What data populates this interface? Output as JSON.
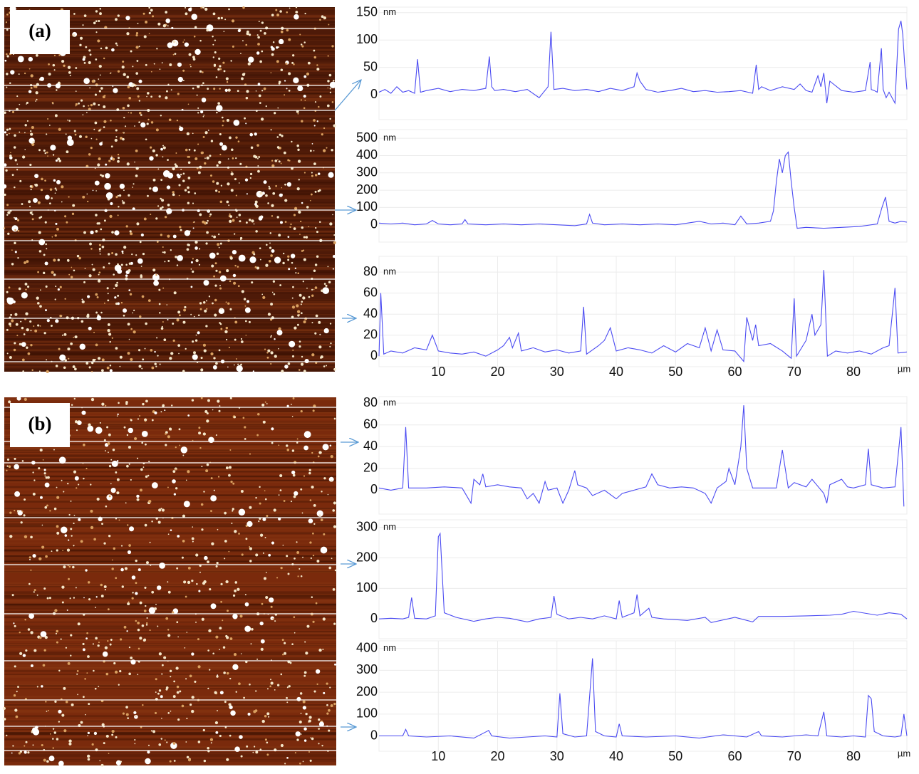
{
  "panel_labels": [
    "(a)",
    "(b)"
  ],
  "chart_data": [
    {
      "type": "line",
      "ylabel": "nm",
      "color": "#4b4bf2",
      "xlim": [
        0,
        89
      ],
      "ylim": [
        -45,
        160
      ],
      "yticks": [
        0,
        50,
        100,
        150
      ],
      "x": [
        0,
        1,
        2,
        3,
        4,
        5,
        6,
        6.5,
        7,
        8,
        10,
        12,
        14,
        16,
        18,
        18.6,
        19,
        19.5,
        21,
        23,
        25,
        27,
        28.5,
        29,
        29.5,
        31,
        33,
        35,
        37,
        39,
        41,
        43,
        43.5,
        44,
        45,
        47,
        49,
        51,
        53,
        55,
        57,
        59,
        61,
        63,
        63.6,
        64,
        64.5,
        66,
        68,
        70,
        71,
        72,
        73,
        74,
        74.5,
        75,
        75.5,
        76,
        78,
        80,
        82,
        82.8,
        83,
        83.5,
        84,
        84.7,
        85,
        85.5,
        86,
        87,
        87.6,
        88,
        88.3,
        88.6,
        89
      ],
      "values": [
        5,
        10,
        3,
        15,
        5,
        8,
        3,
        65,
        5,
        8,
        12,
        6,
        10,
        8,
        12,
        70,
        15,
        8,
        10,
        6,
        10,
        -5,
        15,
        115,
        10,
        12,
        8,
        10,
        6,
        12,
        8,
        15,
        40,
        25,
        10,
        5,
        8,
        12,
        6,
        8,
        5,
        6,
        8,
        3,
        55,
        10,
        15,
        8,
        15,
        10,
        20,
        8,
        5,
        35,
        15,
        40,
        -15,
        25,
        8,
        5,
        8,
        60,
        10,
        8,
        5,
        85,
        10,
        -5,
        5,
        -15,
        120,
        135,
        110,
        60,
        10
      ]
    },
    {
      "type": "line",
      "ylabel": "nm",
      "color": "#4b4bf2",
      "xlim": [
        0,
        89
      ],
      "ylim": [
        -100,
        550
      ],
      "yticks": [
        0,
        100,
        200,
        300,
        400,
        500
      ],
      "x": [
        0,
        2,
        4,
        6,
        8,
        9,
        10,
        12,
        14,
        14.5,
        15,
        18,
        21,
        24,
        27,
        30,
        33,
        35,
        35.5,
        36,
        38,
        41,
        44,
        47,
        50,
        52,
        54,
        56,
        58,
        60,
        61,
        62,
        64,
        66,
        66.5,
        67,
        67.5,
        68,
        68.5,
        69,
        69.5,
        70,
        70.5,
        72,
        75,
        78,
        81,
        84,
        84.8,
        85.4,
        86,
        87,
        88,
        89
      ],
      "values": [
        10,
        5,
        10,
        0,
        5,
        25,
        5,
        0,
        5,
        30,
        5,
        0,
        5,
        0,
        5,
        0,
        -5,
        5,
        60,
        10,
        0,
        5,
        0,
        5,
        0,
        10,
        20,
        5,
        10,
        0,
        50,
        5,
        10,
        20,
        80,
        250,
        380,
        300,
        400,
        420,
        250,
        100,
        -20,
        -15,
        -20,
        -15,
        -10,
        5,
        100,
        160,
        20,
        10,
        20,
        15
      ]
    },
    {
      "type": "line",
      "ylabel": "nm",
      "xlabel": "µm",
      "color": "#4b4bf2",
      "xlim": [
        0,
        89
      ],
      "ylim": [
        -10,
        95
      ],
      "yticks": [
        0,
        20,
        40,
        60,
        80
      ],
      "xticks": [
        10,
        20,
        30,
        40,
        50,
        60,
        70,
        80
      ],
      "x": [
        0,
        0.3,
        0.8,
        2,
        4,
        6,
        8,
        9,
        10,
        12,
        14,
        16,
        18,
        20,
        21,
        22,
        22.5,
        23.5,
        24,
        26,
        28,
        30,
        32,
        34,
        34.5,
        35,
        37,
        38,
        39,
        40,
        42,
        44,
        46,
        48,
        50,
        52,
        54,
        55,
        56,
        57,
        58,
        60,
        61.5,
        62,
        63,
        63.5,
        64,
        66,
        68,
        69.5,
        70,
        70.4,
        72,
        73,
        73.5,
        74.5,
        75,
        75.6,
        77,
        79,
        81,
        83,
        85,
        86,
        87,
        87.5,
        89
      ],
      "values": [
        0,
        60,
        2,
        5,
        3,
        8,
        6,
        20,
        5,
        3,
        2,
        4,
        0,
        6,
        10,
        18,
        8,
        22,
        5,
        8,
        4,
        6,
        3,
        5,
        47,
        2,
        10,
        15,
        27,
        5,
        8,
        6,
        3,
        10,
        4,
        12,
        8,
        27,
        5,
        25,
        6,
        5,
        -5,
        37,
        15,
        30,
        10,
        12,
        5,
        -2,
        55,
        0,
        15,
        40,
        20,
        30,
        82,
        0,
        5,
        3,
        5,
        2,
        8,
        10,
        65,
        3,
        4
      ]
    },
    {
      "type": "line",
      "ylabel": "nm",
      "color": "#4b4bf2",
      "xlim": [
        0,
        89
      ],
      "ylim": [
        -22,
        86
      ],
      "yticks": [
        0,
        20,
        40,
        60,
        80
      ],
      "x": [
        0,
        2,
        4,
        4.5,
        5,
        8,
        11,
        14,
        15.5,
        16,
        17,
        17.5,
        18,
        20,
        22,
        24,
        25,
        26,
        27,
        28,
        28.5,
        30,
        31,
        32,
        33,
        33.5,
        35,
        36,
        38,
        40,
        41,
        43,
        45,
        46,
        47,
        49,
        51,
        53,
        55,
        56,
        57,
        58.5,
        59,
        60,
        61,
        61.5,
        62,
        63,
        65,
        67,
        68,
        69,
        70,
        72,
        73,
        75,
        75.5,
        76,
        78,
        79,
        80,
        82,
        82.5,
        83,
        85,
        87,
        88,
        88.5
      ],
      "values": [
        2,
        0,
        2,
        58,
        2,
        2,
        3,
        2,
        -12,
        10,
        5,
        15,
        3,
        5,
        3,
        2,
        -8,
        -3,
        -12,
        8,
        0,
        2,
        -12,
        0,
        18,
        5,
        2,
        -5,
        0,
        -8,
        -3,
        0,
        3,
        15,
        5,
        2,
        3,
        2,
        -3,
        -12,
        2,
        8,
        20,
        5,
        40,
        78,
        20,
        2,
        2,
        2,
        37,
        2,
        7,
        3,
        10,
        -3,
        -12,
        5,
        10,
        3,
        2,
        5,
        38,
        5,
        2,
        3,
        58,
        -15
      ]
    },
    {
      "type": "line",
      "ylabel": "nm",
      "color": "#4b4bf2",
      "xlim": [
        0,
        89
      ],
      "ylim": [
        -65,
        325
      ],
      "yticks": [
        0,
        100,
        200,
        300
      ],
      "x": [
        0,
        2,
        4,
        5,
        5.5,
        6,
        8,
        9.5,
        10,
        10.3,
        11,
        13,
        16,
        18,
        20,
        22,
        25,
        27,
        29,
        29.5,
        30,
        32,
        34,
        36,
        38,
        40,
        40.5,
        41,
        43,
        43.5,
        44,
        45.5,
        46,
        48,
        52,
        55,
        56,
        60,
        63,
        64,
        68,
        72,
        76,
        78,
        80,
        84,
        86,
        88,
        89
      ],
      "values": [
        0,
        2,
        0,
        5,
        70,
        2,
        0,
        10,
        270,
        280,
        20,
        5,
        -8,
        0,
        5,
        2,
        -10,
        0,
        5,
        75,
        15,
        0,
        5,
        0,
        10,
        0,
        60,
        5,
        20,
        80,
        10,
        35,
        5,
        0,
        -5,
        5,
        -12,
        5,
        -10,
        8,
        8,
        10,
        12,
        15,
        25,
        12,
        20,
        15,
        0
      ]
    },
    {
      "type": "line",
      "ylabel": "nm",
      "xlabel": "µm",
      "color": "#4b4bf2",
      "xlim": [
        0,
        89
      ],
      "ylim": [
        -70,
        435
      ],
      "yticks": [
        0,
        100,
        200,
        300,
        400
      ],
      "xticks": [
        10,
        20,
        30,
        40,
        50,
        60,
        70,
        80
      ],
      "x": [
        0,
        2,
        4,
        4.5,
        5,
        8,
        12,
        16,
        18.5,
        19,
        22,
        25,
        28,
        30,
        30.5,
        31,
        33,
        35,
        36,
        36.5,
        38,
        40,
        40.5,
        41,
        45,
        50,
        54,
        58,
        62,
        64,
        64.5,
        68,
        72,
        74,
        75,
        75.5,
        78,
        80,
        82,
        82.5,
        83,
        83.5,
        85,
        87,
        88,
        88.5,
        89
      ],
      "values": [
        0,
        0,
        0,
        30,
        0,
        -5,
        0,
        -10,
        25,
        0,
        -10,
        -5,
        0,
        -5,
        195,
        10,
        -5,
        0,
        355,
        20,
        0,
        -5,
        55,
        0,
        -5,
        0,
        -10,
        5,
        -5,
        20,
        0,
        -5,
        5,
        0,
        110,
        0,
        -5,
        0,
        -5,
        185,
        170,
        20,
        0,
        -5,
        0,
        100,
        0
      ]
    }
  ]
}
